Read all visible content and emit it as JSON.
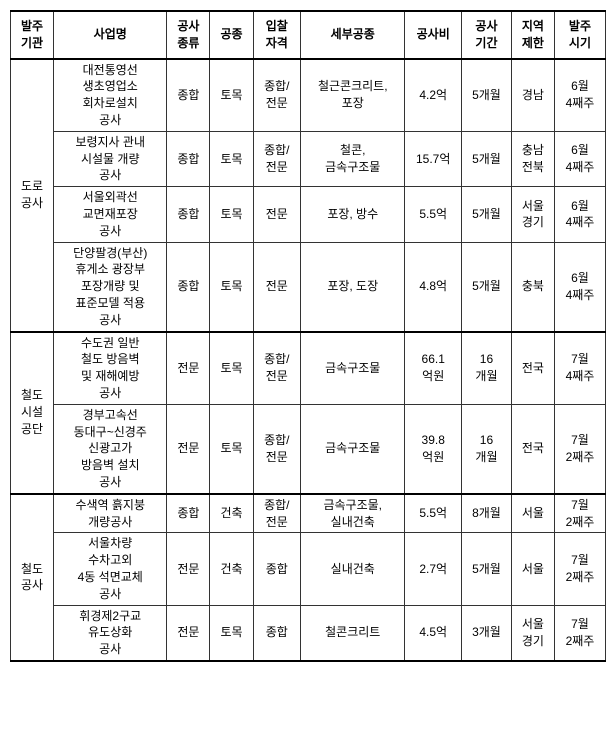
{
  "headers": {
    "agency": "발주\n기관",
    "project": "사업명",
    "type": "공사\n종류",
    "work": "공종",
    "qual": "입찰\n자격",
    "detail": "세부공종",
    "cost": "공사비",
    "period": "공사\n기간",
    "region": "지역\n제한",
    "timing": "발주\n시기"
  },
  "groups": [
    {
      "agency": "도로\n공사",
      "rows": [
        {
          "project": "대전통영선\n생초영업소\n회차로설치\n공사",
          "type": "종합",
          "work": "토목",
          "qual": "종합/\n전문",
          "detail": "철근콘크리트,\n포장",
          "cost": "4.2억",
          "period": "5개월",
          "region": "경남",
          "timing": "6월\n4째주"
        },
        {
          "project": "보령지사 관내\n시설물 개량\n공사",
          "type": "종합",
          "work": "토목",
          "qual": "종합/\n전문",
          "detail": "철콘,\n금속구조물",
          "cost": "15.7억",
          "period": "5개월",
          "region": "충남\n전북",
          "timing": "6월\n4째주"
        },
        {
          "project": "서울외곽선\n교면재포장\n공사",
          "type": "종합",
          "work": "토목",
          "qual": "전문",
          "detail": "포장, 방수",
          "cost": "5.5억",
          "period": "5개월",
          "region": "서울\n경기",
          "timing": "6월\n4째주"
        },
        {
          "project": "단양팔경(부산)\n휴게소 광장부\n포장개량 및\n표준모델 적용\n공사",
          "type": "종합",
          "work": "토목",
          "qual": "전문",
          "detail": "포장, 도장",
          "cost": "4.8억",
          "period": "5개월",
          "region": "충북",
          "timing": "6월\n4째주"
        }
      ]
    },
    {
      "agency": "철도\n시설\n공단",
      "rows": [
        {
          "project": "수도권 일반\n철도 방음벽\n및 재해예방\n공사",
          "type": "전문",
          "work": "토목",
          "qual": "종합/\n전문",
          "detail": "금속구조물",
          "cost": "66.1\n억원",
          "period": "16\n개월",
          "region": "전국",
          "timing": "7월\n4째주"
        },
        {
          "project": "경부고속선\n동대구~신경주\n신광고가\n방음벽 설치\n공사",
          "type": "전문",
          "work": "토목",
          "qual": "종합/\n전문",
          "detail": "금속구조물",
          "cost": "39.8\n억원",
          "period": "16\n개월",
          "region": "전국",
          "timing": "7월\n2째주"
        }
      ]
    },
    {
      "agency": "철도\n공사",
      "rows": [
        {
          "project": "수색역 흙지붕\n개량공사",
          "type": "종합",
          "work": "건축",
          "qual": "종합/\n전문",
          "detail": "금속구조물,\n실내건축",
          "cost": "5.5억",
          "period": "8개월",
          "region": "서울",
          "timing": "7월\n2째주"
        },
        {
          "project": "서울차량\n수차고외\n4동 석면교체\n공사",
          "type": "전문",
          "work": "건축",
          "qual": "종합",
          "detail": "실내건축",
          "cost": "2.7억",
          "period": "5개월",
          "region": "서울",
          "timing": "7월\n2째주"
        },
        {
          "project": "휘경제2구교\n유도상화\n공사",
          "type": "전문",
          "work": "토목",
          "qual": "종합",
          "detail": "철콘크리트",
          "cost": "4.5억",
          "period": "3개월",
          "region": "서울\n경기",
          "timing": "7월\n2째주"
        }
      ]
    }
  ]
}
